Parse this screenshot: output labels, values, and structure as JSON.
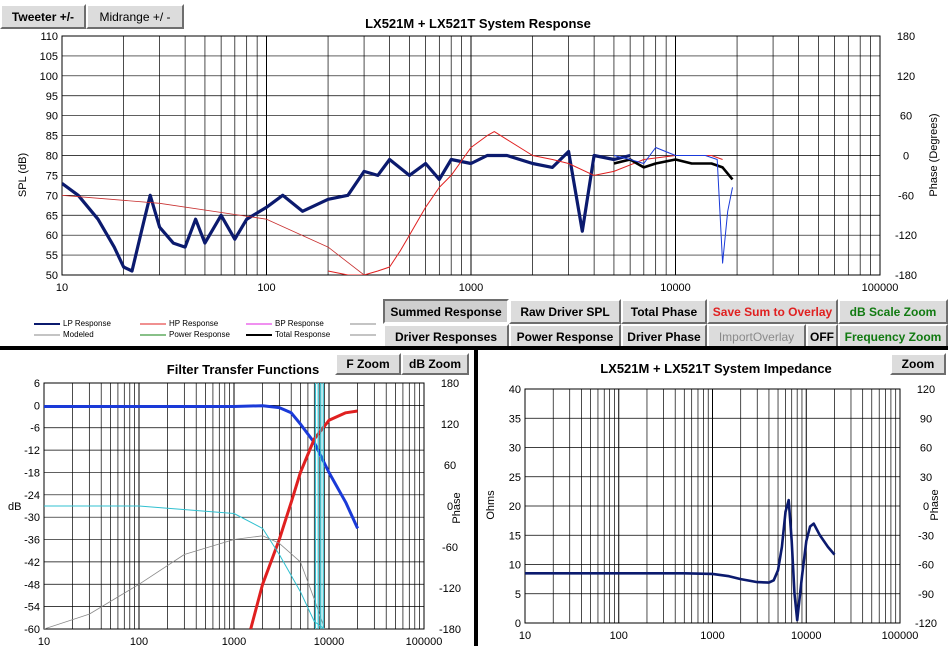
{
  "buttons": {
    "tweeter": "Tweeter +/-",
    "midrange": "Midrange  +/ -",
    "summed_response": "Summed Response",
    "raw_driver_spl": "Raw Driver SPL",
    "total_phase": "Total Phase",
    "save_sum": "Save Sum to Overlay",
    "db_scale_zoom": "dB Scale Zoom",
    "driver_responses": "Driver Responses",
    "power_response": "Power Response",
    "driver_phase": "Driver Phase",
    "import_overlay": "ImportOverlay",
    "off": "OFF",
    "frequency_zoom": "Frequency Zoom",
    "f_zoom": "F Zoom",
    "db_zoom": "dB Zoom",
    "zoom": "Zoom"
  },
  "legend": {
    "lp": "LP Response",
    "hp": "HP Response",
    "bp": "BP Response",
    "modeled": "Modeled",
    "power": "Power Response",
    "total": "Total Response"
  },
  "colors": {
    "lp": "#0b1a6e",
    "hp": "#e02020",
    "bp": "#e020e0",
    "modeled": "#8a8a8a",
    "power": "#108010",
    "total": "#000000",
    "overlay": "#1a3ad8",
    "cyan": "#30c0d0",
    "btn_red": "#e02020",
    "btn_green": "#117a11"
  },
  "chart_data": [
    {
      "type": "line",
      "title": "LX521M + LX521T    System Response",
      "ylabel": "SPL (dB)",
      "y2label": "Phase (Degrees)",
      "xscale": "log",
      "xlim": [
        10,
        100000
      ],
      "ylim": [
        50,
        110
      ],
      "y2lim": [
        -180,
        180
      ],
      "xticks": [
        "10",
        "100",
        "1000",
        "10000",
        "100000"
      ],
      "yticks": [
        "110",
        "105",
        "100",
        "95",
        "90",
        "85",
        "80",
        "75",
        "70",
        "65",
        "60",
        "55",
        "50"
      ],
      "y2ticks": [
        "180",
        "120",
        "60",
        "0",
        "-60",
        "-120",
        "-180"
      ],
      "grid": true,
      "series": [
        {
          "name": "LP Response",
          "x": [
            10,
            12,
            15,
            18,
            20,
            22,
            25,
            27,
            30,
            35,
            40,
            45,
            50,
            60,
            70,
            80,
            100,
            120,
            150,
            200,
            250,
            300,
            350,
            400,
            500,
            600,
            700,
            800,
            1000,
            1200,
            1500,
            2000,
            2500,
            3000,
            3500,
            4000,
            5000,
            6000
          ],
          "y": [
            73,
            70,
            64,
            57,
            52,
            51,
            63,
            70,
            62,
            58,
            57,
            64,
            58,
            65,
            59,
            64,
            67,
            70,
            66,
            69,
            70,
            76,
            75,
            79,
            75,
            78,
            74,
            79,
            78,
            80,
            80,
            78,
            77,
            81,
            61,
            80,
            79,
            80
          ]
        },
        {
          "name": "HP Response",
          "x": [
            200,
            250,
            300,
            350,
            400,
            450,
            500,
            600,
            700,
            800,
            1000,
            1200,
            1300,
            1500,
            2000,
            2500,
            3000,
            4000,
            5000,
            7000,
            10000,
            15000,
            17000
          ],
          "y": [
            51,
            50,
            50,
            51,
            52,
            56,
            60,
            67,
            72,
            75,
            82,
            85,
            86,
            84,
            80,
            79,
            78,
            75,
            76,
            79,
            80,
            80,
            79
          ]
        },
        {
          "name": "Modeled",
          "x": [
            10,
            30,
            100,
            200,
            300
          ],
          "y": [
            70,
            68,
            64,
            57,
            50
          ]
        },
        {
          "name": "Total Response",
          "x": [
            5000,
            6000,
            7000,
            8000,
            10000,
            12000,
            15000,
            17000,
            19000
          ],
          "y": [
            78,
            79,
            77,
            78,
            79,
            78,
            78,
            77,
            74
          ]
        },
        {
          "name": "",
          "x": [
            5000,
            6000,
            7000,
            8000,
            10000,
            12000,
            14000,
            16000,
            17000,
            18000,
            19000
          ],
          "y": [
            80,
            79,
            78,
            82,
            80,
            80,
            80,
            79,
            53,
            66,
            72
          ]
        }
      ]
    },
    {
      "type": "line",
      "title": "Filter Transfer Functions",
      "ylabel": "dB",
      "y2label": "Phase",
      "xscale": "log",
      "xlim": [
        10,
        100000
      ],
      "ylim": [
        -60,
        6
      ],
      "y2lim": [
        -180,
        180
      ],
      "xticks": [
        "10",
        "100",
        "1000",
        "10000",
        "100000"
      ],
      "yticks": [
        "6",
        "0",
        "-6",
        "-12",
        "-18",
        "-24",
        "-30",
        "-36",
        "-42",
        "-48",
        "-54",
        "-60"
      ],
      "y2ticks": [
        "180",
        "120",
        "60",
        "0",
        "-60",
        "-120",
        "-180"
      ],
      "series": [
        {
          "name": "",
          "x": [
            10,
            100,
            1000,
            2000,
            3000,
            4000,
            5000,
            7000,
            10000,
            15000,
            20000
          ],
          "y": [
            -0.3,
            -0.3,
            -0.3,
            -0.1,
            -0.6,
            -2,
            -5,
            -10,
            -18,
            -26,
            -33
          ]
        },
        {
          "name": "",
          "x": [
            1500,
            2000,
            3000,
            4000,
            5000,
            7000,
            10000,
            15000,
            20000
          ],
          "y": [
            -60,
            -48,
            -36,
            -26,
            -18,
            -9,
            -4,
            -2,
            -1.5
          ]
        },
        {
          "name": "",
          "x": [
            10,
            100,
            1000,
            2000,
            3000,
            5000,
            7000,
            9000
          ],
          "y": [
            -27,
            -27,
            -29,
            -33,
            -40,
            -50,
            -58,
            -60
          ]
        },
        {
          "name": "",
          "x": [
            10,
            30,
            100,
            300,
            1000,
            2000,
            3000,
            5000,
            7000,
            9000
          ],
          "y": [
            -60,
            -56,
            -48,
            -40,
            -36,
            -35,
            -37,
            -42,
            -52,
            -60
          ]
        }
      ]
    },
    {
      "type": "line",
      "title": "LX521M + LX521T    System Impedance",
      "ylabel": "Ohms",
      "y2label": "Phase",
      "xscale": "log",
      "xlim": [
        10,
        100000
      ],
      "ylim": [
        0,
        40
      ],
      "y2lim": [
        -120,
        120
      ],
      "xticks": [
        "10",
        "100",
        "1000",
        "10000",
        "100000"
      ],
      "yticks": [
        "40",
        "35",
        "30",
        "25",
        "20",
        "15",
        "10",
        "5",
        "0"
      ],
      "y2ticks": [
        "120",
        "90",
        "60",
        "30",
        "0",
        "-30",
        "-60",
        "-90",
        "-120"
      ],
      "series": [
        {
          "name": "",
          "x": [
            10,
            100,
            500,
            1000,
            1500,
            2000,
            3000,
            4000,
            4500,
            5000,
            5500,
            6000,
            6500,
            7000,
            7500,
            8000,
            9000,
            10000,
            11000,
            12000,
            14000,
            17000,
            20000
          ],
          "y": [
            8.5,
            8.5,
            8.5,
            8.4,
            8.0,
            7.5,
            7.0,
            6.9,
            7.3,
            9,
            13,
            19,
            21,
            14,
            5,
            0.5,
            8,
            14,
            16.5,
            17,
            15,
            13,
            11.7
          ]
        }
      ]
    }
  ]
}
